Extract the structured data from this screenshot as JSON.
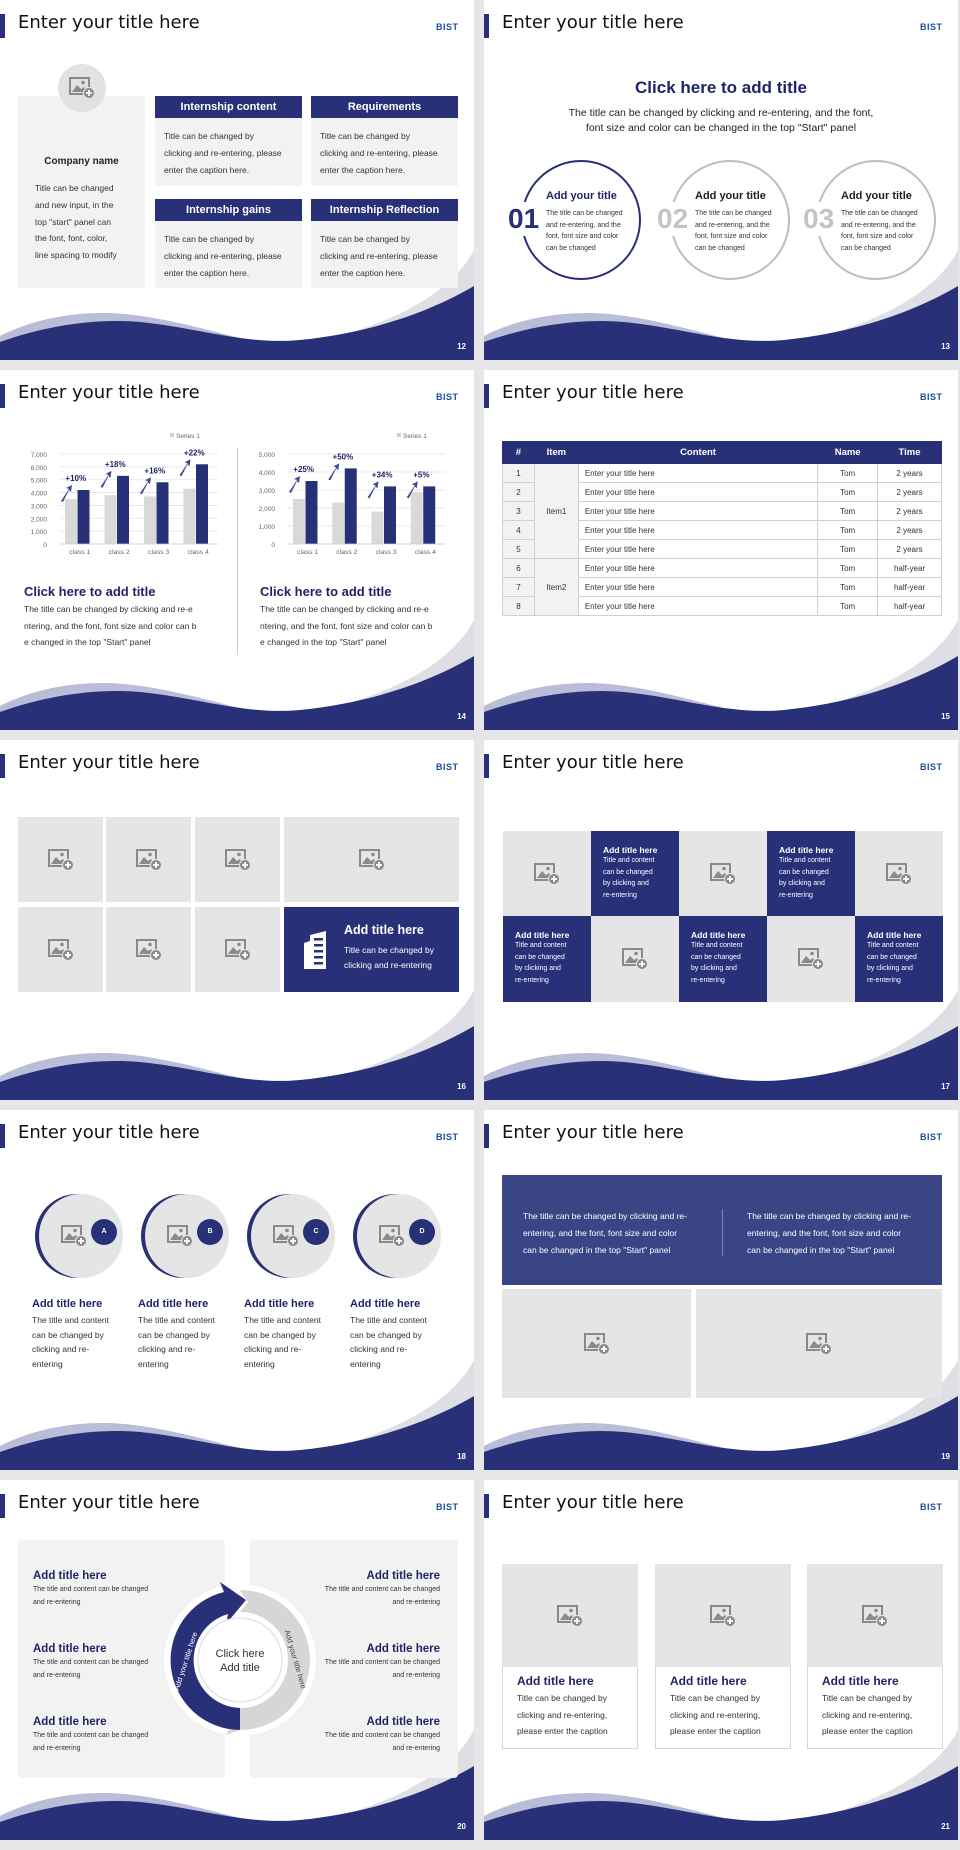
{
  "colors": {
    "navy": "#283077",
    "gray_bar": "#d9d9d9",
    "placeholder": "#e6e5e6"
  },
  "slides": [
    {
      "title": "Enter your title here",
      "logo": "BIST",
      "page": "12",
      "company_name": "Company name",
      "company_desc": [
        "Title can be changed",
        "and new input, in the",
        "top \"start\" panel can",
        "the font, font, color,",
        "line spacing to modify"
      ],
      "cards": [
        {
          "title": "Internship content",
          "body": [
            "Title can be changed by",
            "clicking and re-entering, please",
            "enter the caption here."
          ]
        },
        {
          "title": "Requirements",
          "body": [
            "Title can be changed by",
            "clicking and re-entering, please",
            "enter the caption here."
          ]
        },
        {
          "title": "Internship gains",
          "body": [
            "Title can be changed by",
            "clicking and re-entering, please",
            "enter the caption here."
          ]
        },
        {
          "title": "Internship Reflection",
          "body": [
            "Title can be changed by",
            "clicking and re-entering, please",
            "enter the caption here."
          ]
        }
      ]
    },
    {
      "title": "Enter your title here",
      "logo": "BIST",
      "page": "13",
      "heading": "Click here to add title",
      "sub": [
        "The title can be changed by clicking and re-entering, and the font,",
        "font size and color can be changed in the top \"Start\" panel"
      ],
      "circles": [
        {
          "num": "01",
          "title": "Add your title",
          "body": [
            "The title can be changed",
            "and re-entering, and the",
            "font, font size and color",
            "can be changed"
          ]
        },
        {
          "num": "02",
          "title": "Add your title",
          "body": [
            "The title can be changed",
            "and re-entering, and the",
            "font, font size and color",
            "can be changed"
          ]
        },
        {
          "num": "03",
          "title": "Add your title",
          "body": [
            "The title can be changed",
            "and re-entering, and the",
            "font, font size and color",
            "can be changed"
          ]
        }
      ]
    },
    {
      "title": "Enter your title here",
      "logo": "BIST",
      "page": "14",
      "blocks": [
        {
          "title": "Click here to add title",
          "body": [
            "The title can be changed by clicking and re-e",
            "ntering, and the font, font size and color can b",
            "e changed in the top \"Start\" panel"
          ]
        },
        {
          "title": "Click here to add title",
          "body": [
            "The title can be changed by clicking and re-e",
            "ntering, and the font, font size and color can b",
            "e changed in the top \"Start\" panel"
          ]
        }
      ]
    },
    {
      "title": "Enter your title here",
      "logo": "BIST",
      "page": "15",
      "table": {
        "headers": [
          "#",
          "Item",
          "Content",
          "Name",
          "Time"
        ],
        "groups": [
          "Item1",
          "Item2"
        ],
        "rows": [
          [
            "1",
            "Enter your title here",
            "Tom",
            "2 years"
          ],
          [
            "2",
            "Enter your title here",
            "Tom",
            "2 years"
          ],
          [
            "3",
            "Enter your title here",
            "Tom",
            "2 years"
          ],
          [
            "4",
            "Enter your title here",
            "Tom",
            "2 years"
          ],
          [
            "5",
            "Enter your title here",
            "Tom",
            "2 years"
          ],
          [
            "6",
            "Enter your title here",
            "Tom",
            "half-year"
          ],
          [
            "7",
            "Enter your title here",
            "Tom",
            "half-year"
          ],
          [
            "8",
            "Enter your title here",
            "Tom",
            "half-year"
          ]
        ]
      }
    },
    {
      "title": "Enter your title here",
      "logo": "BIST",
      "page": "16",
      "feature": {
        "title": "Add title here",
        "body": [
          "Title can be changed by",
          "clicking and re-entering"
        ]
      }
    },
    {
      "title": "Enter your title here",
      "logo": "BIST",
      "page": "17",
      "tile": {
        "title": "Add title here",
        "body": [
          "Title and content",
          "can be changed",
          "by clicking and",
          "re-entering"
        ]
      }
    },
    {
      "title": "Enter your title here",
      "logo": "BIST",
      "page": "18",
      "items": [
        {
          "badge": "A",
          "title": "Add title here",
          "body": [
            "The title and content",
            "can be changed by",
            "clicking and re-",
            "entering"
          ]
        },
        {
          "badge": "B",
          "title": "Add title here",
          "body": [
            "The title and content",
            "can be changed by",
            "clicking and re-",
            "entering"
          ]
        },
        {
          "badge": "C",
          "title": "Add title here",
          "body": [
            "The title and content",
            "can be changed by",
            "clicking and re-",
            "entering"
          ]
        },
        {
          "badge": "D",
          "title": "Add title here",
          "body": [
            "The title and content",
            "can be changed by",
            "clicking and re-",
            "entering"
          ]
        }
      ]
    },
    {
      "title": "Enter your title here",
      "logo": "BIST",
      "page": "19",
      "texts": [
        [
          "The title can be changed by clicking and re-",
          "entering, and the font, font size and color",
          "can be changed in the top \"Start\" panel"
        ],
        [
          "The title can be changed by clicking and re-",
          "entering, and the font, font size and color",
          "can be changed in the top \"Start\" panel"
        ]
      ]
    },
    {
      "title": "Enter your title here",
      "logo": "BIST",
      "page": "20",
      "item_title": "Add title here",
      "item_body": [
        "The title and content can be changed",
        "and re-entering"
      ],
      "center": [
        "Click here",
        "Add title"
      ],
      "arc_left": "Add your title here",
      "arc_right": "Add your title here"
    },
    {
      "title": "Enter your title here",
      "logo": "BIST",
      "page": "21",
      "card": {
        "title": "Add title here",
        "body": [
          "Title can be changed by",
          "clicking and re-entering,",
          "please enter the caption"
        ]
      }
    }
  ],
  "chart_data": [
    {
      "type": "bar",
      "categories": [
        "class 1",
        "class 2",
        "class 3",
        "class 4"
      ],
      "series": [
        {
          "name": "Series 1",
          "values": [
            3500,
            3800,
            3700,
            4300
          ]
        },
        {
          "values": [
            4200,
            5300,
            4800,
            6200
          ]
        }
      ],
      "annotations": [
        "+10%",
        "+18%",
        "+16%",
        "+22%"
      ],
      "ylim": [
        0,
        7000
      ],
      "yticks": [
        "0",
        "1,000",
        "2,000",
        "3,000",
        "4,000",
        "5,000",
        "6,000",
        "7,000"
      ],
      "legend": "top-right",
      "grid": true
    },
    {
      "type": "bar",
      "categories": [
        "class 1",
        "class 2",
        "class 3",
        "class 4"
      ],
      "series": [
        {
          "name": "Series 1",
          "values": [
            2500,
            2300,
            1800,
            2900
          ]
        },
        {
          "values": [
            3500,
            4200,
            3200,
            3200
          ]
        }
      ],
      "annotations": [
        "+25%",
        "+50%",
        "+34%",
        "+5%"
      ],
      "ylim": [
        0,
        5000
      ],
      "yticks": [
        "0",
        "1,000",
        "2,000",
        "3,000",
        "4,000",
        "5,000"
      ],
      "legend": "top-right",
      "grid": true
    }
  ]
}
